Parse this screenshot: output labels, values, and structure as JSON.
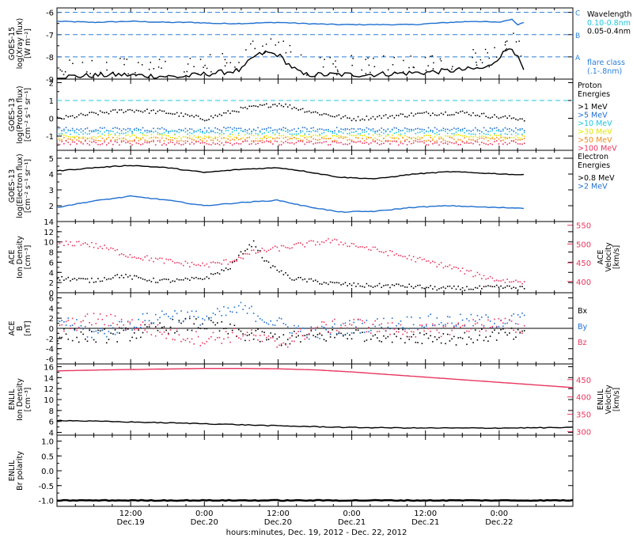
{
  "figure": {
    "xlabel": "hours:minutes, Dec. 19, 2012 - Dec. 22, 2012",
    "x_ticks": [
      {
        "hour": 12,
        "line1": "12:00",
        "line2": "Dec.19"
      },
      {
        "hour": 24,
        "line1": "0:00",
        "line2": "Dec.20"
      },
      {
        "hour": 36,
        "line1": "12:00",
        "line2": "Dec.20"
      },
      {
        "hour": 48,
        "line1": "0:00",
        "line2": "Dec.21"
      },
      {
        "hour": 60,
        "line1": "12:00",
        "line2": "Dec.21"
      },
      {
        "hour": 72,
        "line1": "0:00",
        "line2": "Dec.22"
      }
    ],
    "x_range_hours": [
      0,
      84
    ],
    "colors": {
      "black": "#000000",
      "blue": "#1e6fd0",
      "pink": "#e8365f",
      "cyan": "#22c5e0",
      "green": "#33cc33",
      "yellow": "#e6e600",
      "orange": "#f08c1e",
      "dash_blue": "#2a7fd8"
    }
  },
  "chart_data": [
    {
      "type": "line",
      "panel": "goes15-xray",
      "ylabel_lines": [
        "GOES-15",
        "log(Xray flux)",
        "[W m⁻²]"
      ],
      "ylim": [
        -9,
        -5.8
      ],
      "yticks": [
        -9,
        -8,
        -7,
        -6
      ],
      "class_lines": [
        {
          "label": "C",
          "y": -6
        },
        {
          "label": "B",
          "y": -7
        },
        {
          "label": "A",
          "y": -8
        }
      ],
      "legend": {
        "title": "Wavelength",
        "entries": [
          {
            "text": "0.10-0.8nm",
            "color": "#22c5e0"
          },
          {
            "text": "0.05-0.4nm",
            "color": "#000000"
          }
        ]
      },
      "legend_extra": {
        "line1": "flare class",
        "line2": "(.1-.8nm)"
      },
      "series": [
        {
          "color": "#1e6fd0",
          "x": [
            0,
            6,
            12,
            18,
            22,
            26,
            30,
            36,
            40,
            46,
            52,
            58,
            64,
            68,
            72,
            74,
            75,
            76
          ],
          "y": [
            -6.4,
            -6.45,
            -6.4,
            -6.45,
            -6.45,
            -6.5,
            -6.5,
            -6.45,
            -6.5,
            -6.55,
            -6.55,
            -6.55,
            -6.45,
            -6.4,
            -6.45,
            -6.3,
            -6.55,
            -6.45
          ]
        },
        {
          "color": "#000000",
          "x": [
            0,
            10,
            20,
            30,
            32,
            34,
            36,
            38,
            40,
            50,
            60,
            70,
            74,
            76
          ],
          "y": [
            -8.9,
            -8.8,
            -8.9,
            -8.6,
            -8.0,
            -7.8,
            -7.9,
            -8.4,
            -8.8,
            -8.8,
            -8.7,
            -8.5,
            -7.5,
            -8.6
          ]
        }
      ]
    },
    {
      "type": "scatter",
      "panel": "goes13-proton",
      "ylabel_lines": [
        "GOES-13",
        "log(Proton flux)",
        "[cm⁻² s⁻¹ sr⁻¹]"
      ],
      "ylim": [
        -1.8,
        2.2
      ],
      "yticks": [
        -1,
        0,
        1,
        2
      ],
      "threshold": 1,
      "legend": {
        "title_lines": [
          "Proton",
          "Energies"
        ],
        "entries": [
          {
            "text": ">1 MeV",
            "color": "#000000"
          },
          {
            "text": ">5 MeV",
            "color": "#1e6fd0"
          },
          {
            "text": ">10 MeV",
            "color": "#22c5e0"
          },
          {
            "text": ">30 MeV",
            "color": "#e6e600"
          },
          {
            "text": ">50 MeV",
            "color": "#f08c1e"
          },
          {
            "text": ">100 MeV",
            "color": "#e8365f"
          }
        ]
      },
      "series": [
        {
          "color": "#000000",
          "x": [
            0,
            6,
            12,
            18,
            24,
            30,
            36,
            42,
            48,
            54,
            60,
            66,
            72,
            76
          ],
          "y": [
            0.0,
            0.3,
            0.5,
            0.35,
            0.0,
            0.55,
            0.85,
            0.35,
            0.0,
            0.15,
            0.3,
            0.35,
            0.1,
            0.0
          ]
        },
        {
          "color": "#1e6fd0",
          "x": [
            0,
            76
          ],
          "y": [
            -0.6,
            -0.6
          ]
        },
        {
          "color": "#22c5e0",
          "x": [
            0,
            76
          ],
          "y": [
            -0.75,
            -0.75
          ]
        },
        {
          "color": "#e6e600",
          "x": [
            0,
            76
          ],
          "y": [
            -1.0,
            -1.0
          ]
        },
        {
          "color": "#f08c1e",
          "x": [
            0,
            76
          ],
          "y": [
            -1.15,
            -1.15
          ]
        },
        {
          "color": "#e8365f",
          "x": [
            0,
            76
          ],
          "y": [
            -1.35,
            -1.35
          ]
        }
      ]
    },
    {
      "type": "line",
      "panel": "goes13-electron",
      "ylabel_lines": [
        "GOES-13",
        "log(Electron flux)",
        "[cm⁻² s⁻¹ sr⁻¹]"
      ],
      "ylim": [
        1,
        5.5
      ],
      "yticks": [
        2,
        3,
        4,
        5
      ],
      "threshold": 5,
      "legend": {
        "title_lines": [
          "Electron",
          "Energies"
        ],
        "entries": [
          {
            "text": ">0.8 MeV",
            "color": "#000000"
          },
          {
            "text": ">2 MeV",
            "color": "#1e6fd0"
          }
        ]
      },
      "series": [
        {
          "color": "#000000",
          "x": [
            0,
            6,
            12,
            18,
            24,
            30,
            36,
            40,
            46,
            52,
            58,
            64,
            70,
            76
          ],
          "y": [
            4.2,
            4.4,
            4.55,
            4.4,
            4.1,
            4.3,
            4.4,
            4.2,
            3.8,
            3.7,
            4.0,
            4.15,
            4.05,
            3.95
          ]
        },
        {
          "color": "#1e6fd0",
          "x": [
            0,
            6,
            12,
            18,
            24,
            30,
            36,
            40,
            46,
            52,
            58,
            64,
            70,
            76
          ],
          "y": [
            1.9,
            2.3,
            2.6,
            2.35,
            2.0,
            2.2,
            2.35,
            2.0,
            1.6,
            1.65,
            1.9,
            2.0,
            1.9,
            1.85
          ]
        }
      ]
    },
    {
      "type": "scatter",
      "panel": "ace-density-velocity",
      "ylabel_lines": [
        "ACE",
        "Ion Density",
        "[cm⁻³]"
      ],
      "ylabel_right_lines": [
        "ACE",
        "Velocity",
        "[km/s]"
      ],
      "ylim": [
        0,
        14
      ],
      "yticks": [
        0,
        2,
        4,
        6,
        8,
        10,
        12,
        14
      ],
      "ylim_right": [
        370,
        560
      ],
      "yticks_right": [
        400,
        450,
        500,
        550
      ],
      "series": [
        {
          "color": "#000000",
          "axis": "left",
          "x": [
            0,
            6,
            10,
            16,
            20,
            24,
            28,
            30,
            32,
            34,
            38,
            44,
            50,
            56,
            62,
            68,
            72,
            76
          ],
          "y": [
            3,
            2.5,
            3.5,
            2.5,
            2.5,
            3,
            5,
            8,
            10,
            6,
            3,
            2,
            1.5,
            1.5,
            1,
            1,
            1.2,
            1
          ]
        },
        {
          "color": "#e8365f",
          "axis": "right",
          "x": [
            0,
            4,
            8,
            12,
            16,
            20,
            24,
            28,
            32,
            36,
            40,
            44,
            48,
            52,
            56,
            60,
            64,
            68,
            72,
            76
          ],
          "y": [
            500,
            505,
            490,
            470,
            460,
            450,
            445,
            455,
            480,
            490,
            500,
            510,
            500,
            485,
            470,
            455,
            440,
            420,
            405,
            400
          ]
        }
      ]
    },
    {
      "type": "scatter",
      "panel": "ace-magnetic",
      "ylabel_lines": [
        "ACE",
        "B",
        "[nT]"
      ],
      "ylim": [
        -7,
        7
      ],
      "yticks": [
        -6,
        -4,
        -2,
        0,
        2,
        4,
        6
      ],
      "zero_line": true,
      "legend": {
        "entries": [
          {
            "text": "Bx",
            "color": "#000000"
          },
          {
            "text": "By",
            "color": "#1e6fd0"
          },
          {
            "text": "Bz",
            "color": "#e8365f"
          }
        ]
      },
      "series": [
        {
          "color": "#000000",
          "x": [
            0,
            6,
            12,
            18,
            24,
            30,
            36,
            42,
            48,
            54,
            60,
            66,
            72,
            76
          ],
          "y": [
            -1,
            -1.5,
            -1,
            0.5,
            1,
            -1,
            -2,
            -1.5,
            -1,
            -1.2,
            -1.5,
            -1.8,
            -1,
            -1.5
          ]
        },
        {
          "color": "#1e6fd0",
          "x": [
            0,
            6,
            12,
            18,
            24,
            30,
            36,
            42,
            48,
            54,
            60,
            66,
            72,
            76
          ],
          "y": [
            2,
            -1,
            1,
            3,
            2,
            4,
            1,
            -1,
            0.5,
            1,
            1.5,
            1.5,
            1.5,
            2
          ]
        },
        {
          "color": "#e8365f",
          "x": [
            0,
            6,
            12,
            18,
            24,
            30,
            36,
            42,
            48,
            54,
            60,
            66,
            72,
            76
          ],
          "y": [
            0,
            2,
            1,
            -1,
            -2,
            -1,
            -3,
            0,
            1,
            0,
            -0.5,
            0.5,
            1,
            0
          ]
        }
      ]
    },
    {
      "type": "line",
      "panel": "enlil-density-velocity",
      "ylabel_lines": [
        "ENLIL",
        "Ion Density",
        "[cm⁻³]"
      ],
      "ylabel_right_lines": [
        "ENLIL",
        "Velocity",
        "[km/s]"
      ],
      "ylim": [
        3.5,
        16.5
      ],
      "yticks": [
        4,
        6,
        8,
        10,
        12,
        14,
        16
      ],
      "ylim_right": [
        290,
        495
      ],
      "yticks_right": [
        300,
        350,
        400,
        450
      ],
      "series": [
        {
          "color": "#e8365f",
          "axis": "right",
          "x": [
            0,
            8,
            16,
            24,
            30,
            36,
            42,
            48,
            56,
            64,
            72,
            80,
            84
          ],
          "y": [
            475,
            478,
            480,
            482,
            482,
            481,
            478,
            472,
            462,
            452,
            442,
            432,
            427
          ]
        },
        {
          "color": "#000000",
          "axis": "left",
          "x": [
            0,
            12,
            24,
            36,
            48,
            60,
            72,
            84
          ],
          "y": [
            6.2,
            5.9,
            5.6,
            5.2,
            4.9,
            4.8,
            4.8,
            4.9
          ]
        }
      ]
    },
    {
      "type": "line",
      "panel": "enlil-polarity",
      "ylabel_lines": [
        "ENLIL",
        "Br polarity"
      ],
      "ylim": [
        -1.2,
        1.2
      ],
      "yticks": [
        -1.0,
        -0.5,
        0.0,
        0.5,
        1.0
      ],
      "series": [
        {
          "color": "#000000",
          "x": [
            0,
            84
          ],
          "y": [
            -1,
            -1
          ]
        }
      ]
    }
  ]
}
